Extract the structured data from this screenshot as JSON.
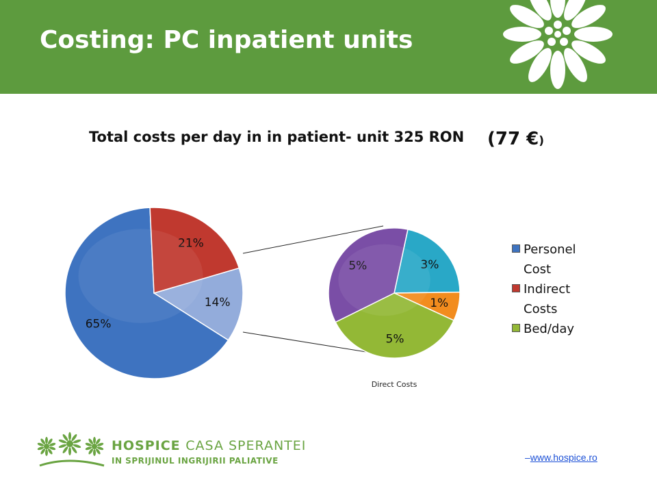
{
  "slide": {
    "title": "Costing: PC inpatient units",
    "subtitle_main": "Total costs per day in in patient- unit 325 RON",
    "subtitle_euro_main": "(77 €",
    "subtitle_euro_close": ")"
  },
  "chart_data": [
    {
      "type": "pie",
      "title": "",
      "slices": [
        {
          "label": "65%",
          "value": 65,
          "color": "#3e73c0"
        },
        {
          "label": "21%",
          "value": 21,
          "color": "#c0392f"
        },
        {
          "label": "14%",
          "value": 14,
          "color": "#93acdb"
        }
      ]
    },
    {
      "type": "pie",
      "title": "Direct Costs",
      "slices": [
        {
          "label": "3%",
          "value": 3,
          "color": "#29a8c7"
        },
        {
          "label": "1%",
          "value": 1,
          "color": "#f28c1e"
        },
        {
          "label": "5%",
          "value": 5,
          "color": "#93b836"
        },
        {
          "label": "5%",
          "value": 5,
          "color": "#7a4ea6"
        }
      ]
    }
  ],
  "legend": [
    {
      "line1": "Personel",
      "line2": "Cost",
      "color": "#3e73c0"
    },
    {
      "line1": "Indirect",
      "line2": "Costs",
      "color": "#c0392f"
    },
    {
      "line1": "Bed/day",
      "line2": "",
      "color": "#93b836"
    }
  ],
  "footer": {
    "brand_bold": "HOSPICE",
    "brand_light": "CASA SPERANTEI",
    "tagline": "IN SPRIJINUL INGRIJIRII PALIATIVE",
    "url_prefix": "–",
    "url": "www.hospice.ro"
  },
  "icons": {
    "header": "flower-icon",
    "footer": "flower-logo-icon"
  }
}
